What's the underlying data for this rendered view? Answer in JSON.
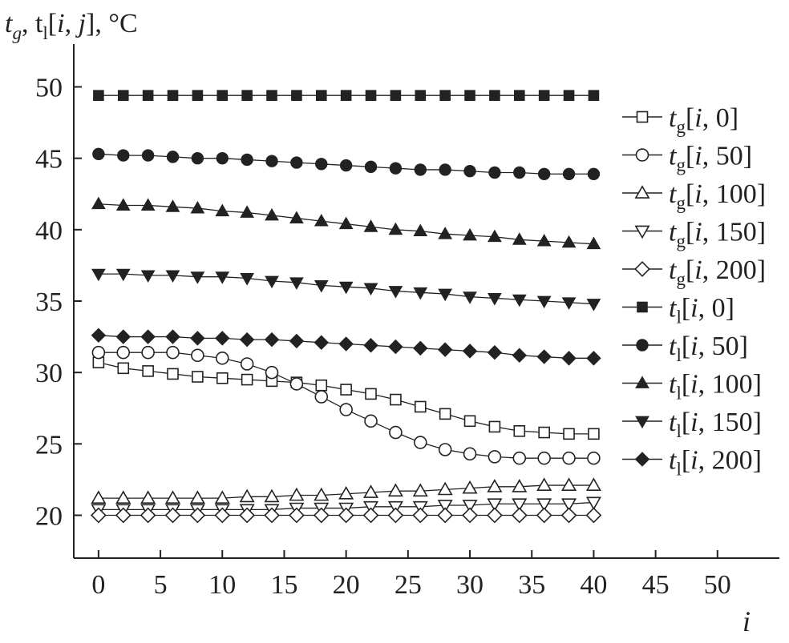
{
  "chart_data": {
    "type": "line",
    "ylabel": {
      "t1": "t",
      "s1": "g",
      "mid": ", t",
      "s2": "l",
      "rest1": "[",
      "i": "i",
      "rest2": ", ",
      "j": "j",
      "rest3": "], °C"
    },
    "xlabel": "i",
    "xlim": [
      -2,
      55
    ],
    "ylim": [
      17,
      53
    ],
    "xticks": [
      0,
      5,
      10,
      15,
      20,
      25,
      30,
      35,
      40,
      45,
      50
    ],
    "yticks": [
      20,
      25,
      30,
      35,
      40,
      45,
      50
    ],
    "x": [
      0,
      2,
      4,
      6,
      8,
      10,
      12,
      14,
      16,
      18,
      20,
      22,
      24,
      26,
      28,
      30,
      32,
      34,
      36,
      38,
      40
    ],
    "series": [
      {
        "sym": "t",
        "sub": "g",
        "idx": "0",
        "marker": "square",
        "filled": false,
        "values": [
          30.7,
          30.3,
          30.1,
          29.9,
          29.7,
          29.6,
          29.5,
          29.4,
          29.3,
          29.1,
          28.8,
          28.5,
          28.1,
          27.6,
          27.1,
          26.6,
          26.2,
          25.9,
          25.8,
          25.7,
          25.7
        ]
      },
      {
        "sym": "t",
        "sub": "g",
        "idx": "50",
        "marker": "circle",
        "filled": false,
        "values": [
          31.4,
          31.4,
          31.4,
          31.4,
          31.2,
          31.0,
          30.6,
          30.0,
          29.2,
          28.3,
          27.4,
          26.6,
          25.8,
          25.1,
          24.6,
          24.3,
          24.1,
          24.0,
          24.0,
          24.0,
          24.0
        ]
      },
      {
        "sym": "t",
        "sub": "g",
        "idx": "100",
        "marker": "triangle-up",
        "filled": false,
        "values": [
          21.2,
          21.2,
          21.2,
          21.2,
          21.2,
          21.2,
          21.3,
          21.3,
          21.4,
          21.4,
          21.5,
          21.6,
          21.7,
          21.7,
          21.8,
          21.9,
          22.0,
          22.0,
          22.1,
          22.1,
          22.1
        ]
      },
      {
        "sym": "t",
        "sub": "g",
        "idx": "150",
        "marker": "triangle-down",
        "filled": false,
        "values": [
          20.4,
          20.4,
          20.4,
          20.4,
          20.4,
          20.4,
          20.4,
          20.4,
          20.5,
          20.5,
          20.5,
          20.6,
          20.6,
          20.6,
          20.7,
          20.7,
          20.8,
          20.8,
          20.8,
          20.8,
          20.9
        ]
      },
      {
        "sym": "t",
        "sub": "g",
        "idx": "200",
        "marker": "diamond",
        "filled": false,
        "values": [
          20.0,
          20.0,
          20.0,
          20.0,
          20.0,
          20.0,
          20.0,
          20.0,
          20.0,
          20.0,
          20.0,
          20.0,
          20.0,
          20.0,
          20.0,
          20.0,
          20.0,
          20.0,
          20.0,
          20.0,
          20.0
        ]
      },
      {
        "sym": "t",
        "sub": "l",
        "idx": "0",
        "marker": "square",
        "filled": true,
        "values": [
          49.4,
          49.4,
          49.4,
          49.4,
          49.4,
          49.4,
          49.4,
          49.4,
          49.4,
          49.4,
          49.4,
          49.4,
          49.4,
          49.4,
          49.4,
          49.4,
          49.4,
          49.4,
          49.4,
          49.4,
          49.4
        ]
      },
      {
        "sym": "t",
        "sub": "l",
        "idx": "50",
        "marker": "circle",
        "filled": true,
        "values": [
          45.3,
          45.2,
          45.2,
          45.1,
          45.0,
          45.0,
          44.9,
          44.8,
          44.7,
          44.6,
          44.5,
          44.4,
          44.3,
          44.2,
          44.2,
          44.1,
          44.0,
          44.0,
          43.9,
          43.9,
          43.9
        ]
      },
      {
        "sym": "t",
        "sub": "l",
        "idx": "100",
        "marker": "triangle-up",
        "filled": true,
        "values": [
          41.8,
          41.7,
          41.7,
          41.6,
          41.5,
          41.3,
          41.2,
          41.0,
          40.8,
          40.6,
          40.4,
          40.2,
          40.0,
          39.9,
          39.7,
          39.6,
          39.5,
          39.3,
          39.2,
          39.1,
          39.0
        ]
      },
      {
        "sym": "t",
        "sub": "l",
        "idx": "150",
        "marker": "triangle-down",
        "filled": true,
        "values": [
          36.9,
          36.9,
          36.8,
          36.8,
          36.7,
          36.7,
          36.6,
          36.4,
          36.3,
          36.1,
          36.0,
          35.9,
          35.7,
          35.6,
          35.5,
          35.3,
          35.2,
          35.1,
          35.0,
          34.9,
          34.8
        ]
      },
      {
        "sym": "t",
        "sub": "l",
        "idx": "200",
        "marker": "diamond",
        "filled": true,
        "values": [
          32.6,
          32.5,
          32.5,
          32.5,
          32.4,
          32.4,
          32.3,
          32.3,
          32.2,
          32.1,
          32.0,
          31.9,
          31.8,
          31.7,
          31.6,
          31.5,
          31.4,
          31.2,
          31.1,
          31.0,
          31.0
        ]
      }
    ],
    "grid": false,
    "legend": "right"
  }
}
